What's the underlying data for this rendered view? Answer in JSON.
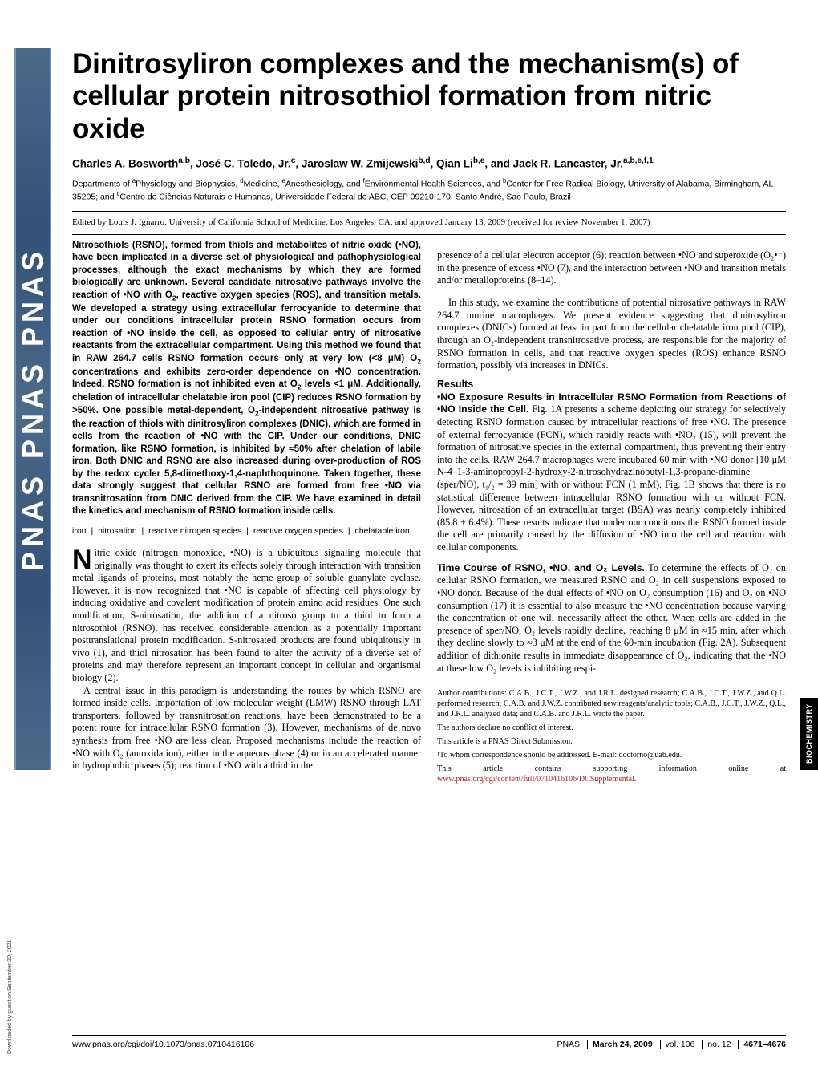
{
  "banner": "PNAS  PNAS  PNAS",
  "title": "Dinitrosyliron complexes and the mechanism(s) of cellular protein nitrosothiol formation from nitric oxide",
  "authors_html": "Charles A. Bosworth<sup>a,b</sup>, José C. Toledo, Jr.<sup>c</sup>, Jaroslaw W. Zmijewski<sup>b,d</sup>, Qian Li<sup>b,e</sup>, and Jack R. Lancaster, Jr.<sup>a,b,e,f,1</sup>",
  "affiliations_html": "Departments of <sup>a</sup>Physiology and Biophysics, <sup>d</sup>Medicine, <sup>e</sup>Anesthesiology, and <sup>f</sup>Environmental Health Sciences, and <sup>b</sup>Center for Free Radical Biology, University of Alabama, Birmingham, AL 35205; and <sup>c</sup>Centro de Ciências Naturais e Humanas, Universidade Federal do ABC, CEP 09210-170, Santo André, Sao Paulo, Brazil",
  "edited": "Edited by Louis J. Ignarro, University of California School of Medicine, Los Angeles, CA, and approved January 13, 2009 (received for review November 1, 2007)",
  "abstract_html": "Nitrosothiols (RSNO), formed from thiols and metabolites of nitric oxide (•NO), have been implicated in a diverse set of physiological and pathophysiological processes, although the exact mechanisms by which they are formed biologically are unknown. Several candidate nitrosative pathways involve the reaction of •NO with O<sub>2</sub>, reactive oxygen species (ROS), and transition metals. We developed a strategy using extracellular ferrocyanide to determine that under our conditions intracellular protein RSNO formation occurs from reaction of •NO inside the cell, as opposed to cellular entry of nitrosative reactants from the extracellular compartment. Using this method we found that in RAW 264.7 cells RSNO formation occurs only at very low (&lt;8 &mu;M) O<sub>2</sub> concentrations and exhibits zero-order dependence on •NO concentration. Indeed, RSNO formation is not inhibited even at O<sub>2</sub> levels &lt;1 &mu;M. Additionally, chelation of intracellular chelatable iron pool (CIP) reduces RSNO formation by &gt;50%. One possible metal-dependent, O<sub>2</sub>-independent nitrosative pathway is the reaction of thiols with dinitrosyliron complexes (DNIC), which are formed in cells from the reaction of •NO with the CIP. Under our conditions, DNIC formation, like RSNO formation, is inhibited by &asymp;50% after chelation of labile iron. Both DNIC and RSNO are also increased during over-production of ROS by the redox cycler 5,8-dimethoxy-1,4-naphthoquinone. Taken together, these data strongly suggest that cellular RSNO are formed from free •NO via transnitrosation from DNIC derived from the CIP. We have examined in detail the kinetics and mechanism of RSNO formation inside cells.",
  "keywords_html": "iron <span class=\"sep\">|</span> nitrosation <span class=\"sep\">|</span> reactive nitrogen species <span class=\"sep\">|</span> reactive oxygen species <span class=\"sep\">|</span> chelatable iron",
  "intro_p1": "Nitric oxide (nitrogen monoxide, •NO) is a ubiquitous signaling molecule that originally was thought to exert its effects solely through interaction with transition metal ligands of proteins, most notably the heme group of soluble guanylate cyclase. However, it is now recognized that •NO is capable of affecting cell physiology by inducing oxidative and covalent modification of protein amino acid residues. One such modification, S-nitrosation, the addition of a nitroso group to a thiol to form a nitrosothiol (RSNO), has received considerable attention as a potentially important posttranslational protein modification. S-nitrosated products are found ubiquitously in vivo (1), and thiol nitrosation has been found to alter the activity of a diverse set of proteins and may therefore represent an important concept in cellular and organismal biology (2).",
  "intro_p2": "A central issue in this paradigm is understanding the routes by which RSNO are formed inside cells. Importation of low molecular weight (LMW) RSNO through LAT transporters, followed by transnitrosation reactions, have been demonstrated to be a potent route for intracellular RSNO formation (3). However, mechanisms of de novo synthesis from free •NO are less clear. Proposed mechanisms include the reaction of •NO with O₂ (autoxidation), either in the aqueous phase (4) or in an accelerated manner in hydrophobic phases (5); reaction of •NO with a thiol in the",
  "col2_continue": "presence of a cellular electron acceptor (6); reaction between •NO and superoxide (O₂•⁻) in the presence of excess •NO (7), and the interaction between •NO and transition metals and/or metalloproteins (8–14).",
  "col2_p2": "In this study, we examine the contributions of potential nitrosative pathways in RAW 264.7 murine macrophages. We present evidence suggesting that dinitrosyliron complexes (DNICs) formed at least in part from the cellular chelatable iron pool (CIP), through an O₂-independent transnitrosative process, are responsible for the majority of RSNO formation in cells, and that reactive oxygen species (ROS) enhance RSNO formation, possibly via increases in DNICs.",
  "results_head": "Results",
  "sub1_head": "•NO Exposure Results in Intracellular RSNO Formation from Reactions of •NO Inside the Cell.",
  "sub1_body": " Fig. 1A presents a scheme depicting our strategy for selectively detecting RSNO formation caused by intracellular reactions of free •NO. The presence of external ferrocyanide (FCN), which rapidly reacts with •NO₂ (15), will prevent the formation of nitrosative species in the external compartment, thus preventing their entry into the cells. RAW 264.7 macrophages were incubated 60 min with •NO donor [10 μM N-4–1-3-aminopropyl-2-hydroxy-2-nitrosohydrazinobutyl-1,3-propane-diamine (sper/NO), t₁/₂ = 39 min] with or without FCN (1 mM). Fig. 1B shows that there is no statistical difference between intracellular RSNO formation with or without FCN. However, nitrosation of an extracellular target (BSA) was nearly completely inhibited (85.8 ± 6.4%). These results indicate that under our conditions the RSNO formed inside the cell are primarily caused by the diffusion of •NO into the cell and reaction with cellular components.",
  "sub2_head": "Time Course of RSNO, •NO, and O₂ Levels.",
  "sub2_body": " To determine the effects of O₂ on cellular RSNO formation, we measured RSNO and O₂ in cell suspensions exposed to •NO donor. Because of the dual effects of •NO on O₂ consumption (16) and O₂ on •NO consumption (17) it is essential to also measure the •NO concentration because varying the concentration of one will necessarily affect the other. When cells are added in the presence of sper/NO, O₂ levels rapidly decline, reaching 8 μM in ≈15 min, after which they decline slowly to ≈3 μM at the end of the 60-min incubation (Fig. 2A). Subsequent addition of dithionite results in immediate disappearance of O₂, indicating that the •NO at these low O₂ levels is inhibiting respi-",
  "footnotes": {
    "author_contrib": "Author contributions: C.A.B., J.C.T., J.W.Z., and J.R.L. designed research; C.A.B., J.C.T., J.W.Z., and Q.L. performed research; C.A.B. and J.W.Z. contributed new reagents/analytic tools; C.A.B., J.C.T., J.W.Z., Q.L., and J.R.L. analyzed data; and C.A.B. and J.R.L. wrote the paper.",
    "conflict": "The authors declare no conflict of interest.",
    "direct": "This article is a PNAS Direct Submission.",
    "corresp": "¹To whom correspondence should be addressed. E-mail: doctorno@uab.edu.",
    "supp_pre": "This article contains supporting information online at ",
    "supp_link": "www.pnas.org/cgi/content/full/0710416106/DCSupplemental",
    "supp_post": "."
  },
  "footer": {
    "left": "www.pnas.org/cgi/doi/10.1073/pnas.0710416106",
    "journal": "PNAS",
    "date": "March 24, 2009",
    "vol": "vol. 106",
    "issue": "no. 12",
    "pages": "4671–4676"
  },
  "side_tab": "BIOCHEMISTRY",
  "download_note": "Downloaded by guest on September 30, 2021"
}
